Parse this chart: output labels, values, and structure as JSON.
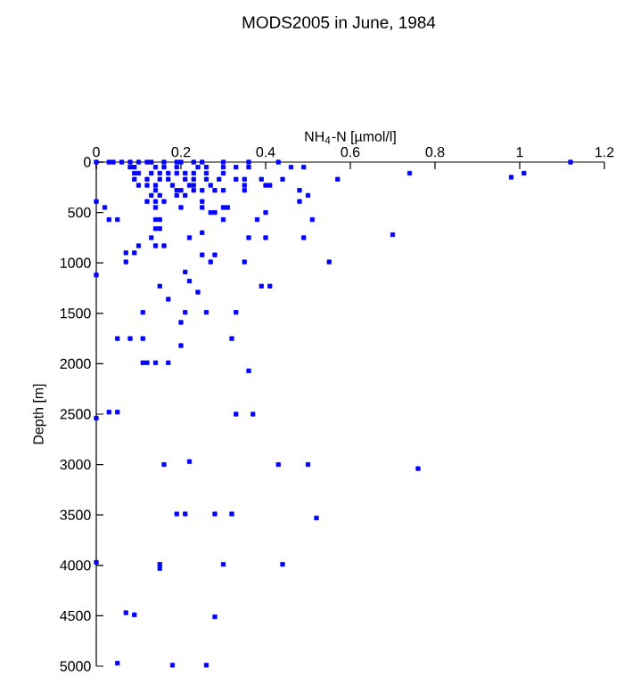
{
  "chart_data": {
    "type": "scatter",
    "title": "MODS2005 in June, 1984",
    "xlabel": "NH$_{4}$-N [µmol/l]",
    "ylabel": "Depth [m]",
    "xlim": [
      0,
      1.2
    ],
    "xticks": [
      0,
      0.2,
      0.4,
      0.6,
      0.8,
      1,
      1.2
    ],
    "ylim": [
      5000,
      0
    ],
    "yticks": [
      0,
      500,
      1000,
      1500,
      2000,
      2500,
      3000,
      3500,
      4000,
      4500,
      5000
    ],
    "marker": "square",
    "color": "#0000ff",
    "x": [
      0,
      0.03,
      0.04,
      0.06,
      0.08,
      0.1,
      0.12,
      0.13,
      0.16,
      0.19,
      0.2,
      0.23,
      0.25,
      0.3,
      0.36,
      0.43,
      1.12,
      0.08,
      0.09,
      0.14,
      0.16,
      0.19,
      0.24,
      0.26,
      0.3,
      0.33,
      0.36,
      0.46,
      0.49,
      0.09,
      0.1,
      0.13,
      0.15,
      0.17,
      0.19,
      0.21,
      0.23,
      0.26,
      0.3,
      0.74,
      1.01,
      0.98,
      0.09,
      0.12,
      0.15,
      0.17,
      0.21,
      0.23,
      0.26,
      0.29,
      0.33,
      0.35,
      0.39,
      0.44,
      0.57,
      0.1,
      0.12,
      0.14,
      0.18,
      0.22,
      0.23,
      0.27,
      0.35,
      0.4,
      0.41,
      0.14,
      0.19,
      0.2,
      0.23,
      0.25,
      0.28,
      0.3,
      0.35,
      0.48,
      0.13,
      0.15,
      0.19,
      0.21,
      0.5,
      0,
      0.12,
      0.14,
      0.16,
      0.25,
      0.48,
      0.02,
      0.14,
      0.2,
      0.25,
      0.3,
      0.31,
      0.27,
      0.28,
      0.4,
      0.03,
      0.05,
      0.14,
      0.15,
      0.3,
      0.38,
      0.51,
      0.14,
      0.15,
      0.25,
      0.7,
      0.13,
      0.22,
      0.36,
      0.4,
      0.49,
      0.1,
      0.14,
      0.16,
      0.07,
      0.09,
      0.25,
      0.28,
      0.07,
      0.27,
      0.35,
      0.55,
      0.21,
      0,
      0.22,
      0.15,
      0.39,
      0.41,
      0.24,
      0.17,
      0.11,
      0.21,
      0.26,
      0.33,
      0.2,
      0.05,
      0.08,
      0.11,
      0.32,
      0.2,
      0.11,
      0.12,
      0.14,
      0.17,
      0.36,
      0.03,
      0.05,
      0.33,
      0.37,
      0,
      0.22,
      0.16,
      0.43,
      0.5,
      0.76,
      0.19,
      0.21,
      0.28,
      0.32,
      0.52,
      0,
      0.15,
      0.3,
      0.44,
      0.15,
      0.07,
      0.09,
      0.28,
      0.05,
      0.18,
      0.26
    ],
    "values": [
      0,
      0,
      0,
      0,
      0,
      0,
      0,
      0,
      0,
      0,
      0,
      0,
      0,
      0,
      0,
      0,
      0,
      50,
      50,
      50,
      50,
      50,
      50,
      50,
      50,
      50,
      50,
      50,
      50,
      110,
      110,
      110,
      110,
      110,
      110,
      110,
      110,
      110,
      110,
      110,
      110,
      150,
      170,
      170,
      170,
      170,
      170,
      170,
      170,
      170,
      170,
      170,
      170,
      170,
      170,
      230,
      230,
      230,
      230,
      230,
      230,
      230,
      230,
      230,
      230,
      280,
      280,
      280,
      280,
      280,
      280,
      280,
      280,
      280,
      330,
      330,
      330,
      330,
      330,
      390,
      390,
      390,
      390,
      390,
      390,
      450,
      450,
      450,
      450,
      450,
      450,
      500,
      500,
      500,
      570,
      570,
      570,
      570,
      570,
      570,
      570,
      660,
      660,
      700,
      720,
      750,
      750,
      750,
      750,
      750,
      830,
      830,
      830,
      900,
      900,
      920,
      920,
      990,
      990,
      990,
      990,
      1090,
      1120,
      1180,
      1230,
      1230,
      1230,
      1290,
      1360,
      1490,
      1490,
      1490,
      1490,
      1590,
      1750,
      1750,
      1750,
      1750,
      1820,
      1990,
      1990,
      1990,
      1990,
      2070,
      2480,
      2480,
      2500,
      2500,
      2540,
      2970,
      3000,
      3000,
      3000,
      3040,
      3490,
      3490,
      3490,
      3490,
      3530,
      3970,
      3990,
      3990,
      3990,
      4030,
      4470,
      4490,
      4510,
      4970,
      4990,
      4990
    ]
  }
}
